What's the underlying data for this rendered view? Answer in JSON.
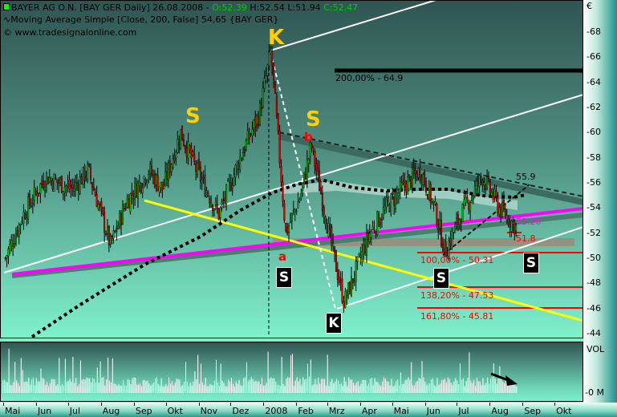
{
  "header": {
    "symbol_line": "BAYER AG O.N. [BAY GER  Daily] 26.08.2008 -",
    "open": "O:52.39",
    "high": "H:52.54",
    "low": "L:51.94",
    "close": "C:52.47",
    "indicator_line": "Moving Average Simple [Close, 200, False] 54,65 {BAY GER}",
    "copyright": "© www.tradesignalonline.com"
  },
  "colors": {
    "up": "#00c000",
    "down": "#e00000",
    "ohlc_green": "#00cc00",
    "magenta": "#ff00ff",
    "yellow": "#ffff00",
    "fib": "#ff0000",
    "label_yellow": "#ffd000"
  },
  "annotations": {
    "fib_200": "200,00% - 64.9",
    "fib_100": "100,00% - 50.31",
    "fib_138": "138,20% - 47.53",
    "fib_161": "161,80% - 45.81",
    "level_559": "55.9",
    "level_5326": "53.26",
    "level_518": "51.8",
    "s1": "S",
    "k1": "K",
    "s2": "S",
    "b": "b",
    "a": "a",
    "box_s1": "S",
    "box_k": "K",
    "box_s2": "S",
    "box_s3": "S"
  },
  "chart_data": {
    "type": "candlestick",
    "currency_label": "€",
    "ylim": [
      43,
      70
    ],
    "yticks": [
      44,
      46,
      48,
      50,
      52,
      54,
      56,
      58,
      60,
      62,
      64,
      66,
      68
    ],
    "volume_axis": {
      "label": "VOL",
      "tick": "0 M"
    },
    "xticks": [
      {
        "label": "Mai",
        "date": "2007-05-01"
      },
      {
        "label": "Jun",
        "date": "2007-06-01"
      },
      {
        "label": "Jul",
        "date": "2007-07-01"
      },
      {
        "label": "Aug",
        "date": "2007-08-01"
      },
      {
        "label": "Sep",
        "date": "2007-09-01"
      },
      {
        "label": "Okt",
        "date": "2007-10-01"
      },
      {
        "label": "Nov",
        "date": "2007-11-01"
      },
      {
        "label": "Dez",
        "date": "2007-12-01"
      },
      {
        "label": "2008",
        "date": "2008-01-01"
      },
      {
        "label": "Feb",
        "date": "2008-02-01"
      },
      {
        "label": "Mrz",
        "date": "2008-03-01"
      },
      {
        "label": "Apr",
        "date": "2008-04-01"
      },
      {
        "label": "Mai",
        "date": "2008-05-01"
      },
      {
        "label": "Jun",
        "date": "2008-06-01"
      },
      {
        "label": "Jul",
        "date": "2008-07-01"
      },
      {
        "label": "Aug",
        "date": "2008-08-01"
      },
      {
        "label": "Sep",
        "date": "2008-09-01"
      },
      {
        "label": "Okt",
        "date": "2008-10-01"
      }
    ],
    "price_path": [
      {
        "date": "2007-05-03",
        "close": 50.0
      },
      {
        "date": "2007-05-20",
        "close": 53.5
      },
      {
        "date": "2007-06-10",
        "close": 56.5
      },
      {
        "date": "2007-07-05",
        "close": 55.5
      },
      {
        "date": "2007-07-20",
        "close": 57.0
      },
      {
        "date": "2007-08-10",
        "close": 51.0
      },
      {
        "date": "2007-08-25",
        "close": 54.5
      },
      {
        "date": "2007-09-15",
        "close": 57.0
      },
      {
        "date": "2007-09-28",
        "close": 55.5
      },
      {
        "date": "2007-10-15",
        "close": 60.0
      },
      {
        "date": "2007-10-30",
        "close": 57.0
      },
      {
        "date": "2007-11-20",
        "close": 53.5
      },
      {
        "date": "2007-12-10",
        "close": 58.0
      },
      {
        "date": "2007-12-28",
        "close": 61.5
      },
      {
        "date": "2008-01-08",
        "close": 66.5
      },
      {
        "date": "2008-01-22",
        "close": 52.0
      },
      {
        "date": "2008-02-05",
        "close": 55.0
      },
      {
        "date": "2008-02-15",
        "close": 59.0
      },
      {
        "date": "2008-03-05",
        "close": 51.0
      },
      {
        "date": "2008-03-17",
        "close": 46.5
      },
      {
        "date": "2008-04-10",
        "close": 52.0
      },
      {
        "date": "2008-04-25",
        "close": 54.0
      },
      {
        "date": "2008-05-15",
        "close": 56.0
      },
      {
        "date": "2008-05-28",
        "close": 57.0
      },
      {
        "date": "2008-06-10",
        "close": 54.0
      },
      {
        "date": "2008-06-20",
        "close": 50.5
      },
      {
        "date": "2008-07-05",
        "close": 53.5
      },
      {
        "date": "2008-07-25",
        "close": 56.5
      },
      {
        "date": "2008-08-10",
        "close": 54.0
      },
      {
        "date": "2008-08-26",
        "close": 52.47
      }
    ],
    "moving_average": {
      "period": 200,
      "last": 54.65
    }
  }
}
